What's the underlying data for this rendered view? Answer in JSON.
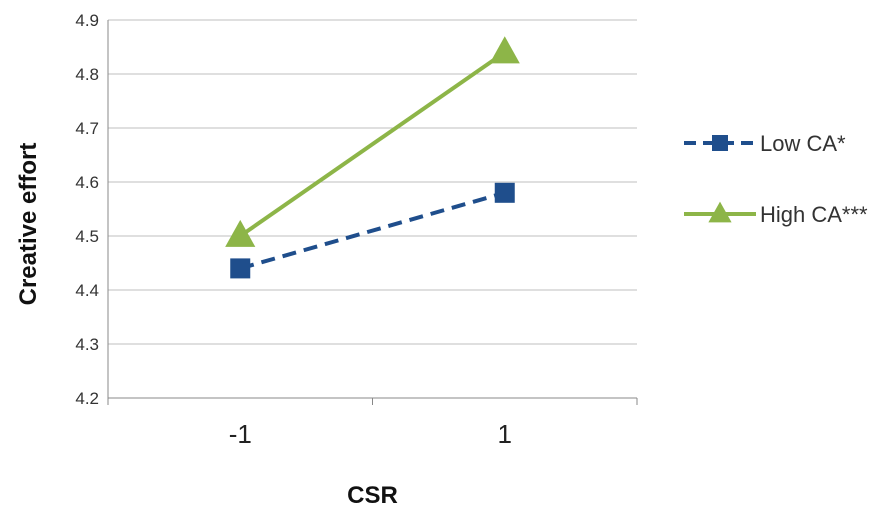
{
  "chart_data": {
    "type": "line",
    "title": "",
    "xlabel": "CSR",
    "ylabel": "Creative effort",
    "categories": [
      "-1",
      "1"
    ],
    "ylim": [
      4.2,
      4.9
    ],
    "yticks": [
      "4.2",
      "4.3",
      "4.4",
      "4.5",
      "4.6",
      "4.7",
      "4.8",
      "4.9"
    ],
    "grid": true,
    "legend_position": "right",
    "series": [
      {
        "name": "Low CA*",
        "values": [
          4.44,
          4.58
        ],
        "color": "#1f4e8c",
        "line_style": "dashed",
        "marker": "square"
      },
      {
        "name": "High CA***",
        "values": [
          4.5,
          4.84
        ],
        "color": "#8db548",
        "line_style": "solid",
        "marker": "triangle"
      }
    ]
  }
}
